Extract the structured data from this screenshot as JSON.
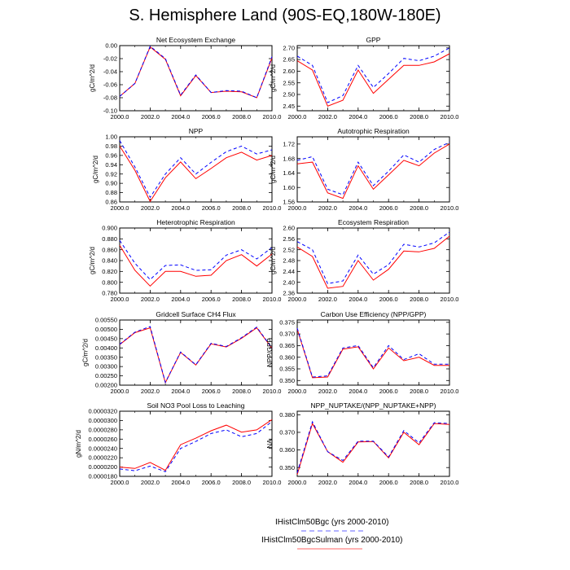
{
  "title": "S. Hemisphere Land (90S-EQ,180W-180E)",
  "legend": {
    "items": [
      {
        "label": "IHistClm50Bgc (yrs 2000-2010)",
        "color": "#0000ff",
        "dash": true
      },
      {
        "label": "IHistClm50BgcSulman (yrs 2000-2010)",
        "color": "#ff0000",
        "dash": false
      }
    ]
  },
  "chart_data": [
    {
      "type": "line",
      "title": "Net Ecosystem Exchange",
      "ylabel": "gC/m^2/d",
      "x": [
        2000,
        2001,
        2002,
        2003,
        2004,
        2005,
        2006,
        2007,
        2008,
        2009,
        2010
      ],
      "xlim": [
        2000,
        2010
      ],
      "xticks": [
        "2000.0",
        "2002.0",
        "2004.0",
        "2006.0",
        "2008.0",
        "2010.0"
      ],
      "ylim": [
        -0.1,
        0.0
      ],
      "yticks": [
        "-0.10",
        "-0.08",
        "-0.06",
        "-0.04",
        "-0.02",
        "0.00"
      ],
      "series": [
        {
          "name": "IHistClm50Bgc (yrs 2000-2010)",
          "color": "#0000ff",
          "dash": true,
          "values": [
            -0.078,
            -0.058,
            -0.001,
            -0.02,
            -0.076,
            -0.045,
            -0.072,
            -0.069,
            -0.07,
            -0.08,
            -0.017
          ]
        },
        {
          "name": "IHistClm50BgcSulman (yrs 2000-2010)",
          "color": "#ff0000",
          "dash": false,
          "values": [
            -0.078,
            -0.058,
            -0.002,
            -0.021,
            -0.077,
            -0.046,
            -0.072,
            -0.07,
            -0.071,
            -0.08,
            -0.019
          ]
        }
      ]
    },
    {
      "type": "line",
      "title": "GPP",
      "ylabel": "gC/m^2/d",
      "x": [
        2000,
        2001,
        2002,
        2003,
        2004,
        2005,
        2006,
        2007,
        2008,
        2009,
        2010
      ],
      "xlim": [
        2000,
        2010
      ],
      "xticks": [
        "2000.0",
        "2002.0",
        "2004.0",
        "2006.0",
        "2008.0",
        "2010.0"
      ],
      "ylim": [
        2.43,
        2.71
      ],
      "yticks": [
        "2.45",
        "2.50",
        "2.55",
        "2.60",
        "2.65",
        "2.70"
      ],
      "series": [
        {
          "name": "IHistClm50Bgc (yrs 2000-2010)",
          "color": "#0000ff",
          "dash": true,
          "values": [
            2.665,
            2.625,
            2.465,
            2.495,
            2.625,
            2.53,
            2.59,
            2.655,
            2.645,
            2.665,
            2.7
          ]
        },
        {
          "name": "IHistClm50BgcSulman (yrs 2000-2010)",
          "color": "#ff0000",
          "dash": false,
          "values": [
            2.645,
            2.605,
            2.45,
            2.475,
            2.605,
            2.505,
            2.565,
            2.625,
            2.625,
            2.64,
            2.675
          ]
        }
      ]
    },
    {
      "type": "line",
      "title": "NPP",
      "ylabel": "gC/m^2/d",
      "x": [
        2000,
        2001,
        2002,
        2003,
        2004,
        2005,
        2006,
        2007,
        2008,
        2009,
        2010
      ],
      "xlim": [
        2000,
        2010
      ],
      "xticks": [
        "2000.0",
        "2002.0",
        "2004.0",
        "2006.0",
        "2008.0",
        "2010.0"
      ],
      "ylim": [
        0.86,
        1.0
      ],
      "yticks": [
        "0.86",
        "0.88",
        "0.90",
        "0.92",
        "0.94",
        "0.96",
        "0.98",
        "1.00"
      ],
      "series": [
        {
          "name": "IHistClm50Bgc (yrs 2000-2010)",
          "color": "#0000ff",
          "dash": true,
          "values": [
            0.992,
            0.935,
            0.87,
            0.92,
            0.955,
            0.92,
            0.945,
            0.968,
            0.98,
            0.963,
            0.972
          ]
        },
        {
          "name": "IHistClm50BgcSulman (yrs 2000-2010)",
          "color": "#ff0000",
          "dash": false,
          "values": [
            0.98,
            0.928,
            0.861,
            0.912,
            0.946,
            0.91,
            0.932,
            0.955,
            0.967,
            0.95,
            0.96
          ]
        }
      ]
    },
    {
      "type": "line",
      "title": "Autotrophic Respiration",
      "ylabel": "gC/m^2/d",
      "x": [
        2000,
        2001,
        2002,
        2003,
        2004,
        2005,
        2006,
        2007,
        2008,
        2009,
        2010
      ],
      "xlim": [
        2000,
        2010
      ],
      "xticks": [
        "2000.0",
        "2002.0",
        "2004.0",
        "2006.0",
        "2008.0",
        "2010.0"
      ],
      "ylim": [
        1.56,
        1.74
      ],
      "yticks": [
        "1.56",
        "1.60",
        "1.64",
        "1.68",
        "1.72"
      ],
      "series": [
        {
          "name": "IHistClm50Bgc (yrs 2000-2010)",
          "color": "#0000ff",
          "dash": true,
          "values": [
            1.675,
            1.685,
            1.595,
            1.58,
            1.67,
            1.605,
            1.645,
            1.69,
            1.67,
            1.705,
            1.725
          ]
        },
        {
          "name": "IHistClm50BgcSulman (yrs 2000-2010)",
          "color": "#ff0000",
          "dash": false,
          "values": [
            1.665,
            1.67,
            1.585,
            1.57,
            1.66,
            1.595,
            1.635,
            1.675,
            1.66,
            1.695,
            1.72
          ]
        }
      ]
    },
    {
      "type": "line",
      "title": "Heterotrophic Respiration",
      "ylabel": "gC/m^2/d",
      "x": [
        2000,
        2001,
        2002,
        2003,
        2004,
        2005,
        2006,
        2007,
        2008,
        2009,
        2010
      ],
      "xlim": [
        2000,
        2010
      ],
      "xticks": [
        "2000.0",
        "2002.0",
        "2004.0",
        "2006.0",
        "2008.0",
        "2010.0"
      ],
      "ylim": [
        0.78,
        0.9
      ],
      "yticks": [
        "0.780",
        "0.800",
        "0.820",
        "0.840",
        "0.860",
        "0.880",
        "0.900"
      ],
      "series": [
        {
          "name": "IHistClm50Bgc (yrs 2000-2010)",
          "color": "#0000ff",
          "dash": true,
          "values": [
            0.877,
            0.835,
            0.805,
            0.831,
            0.832,
            0.822,
            0.823,
            0.85,
            0.86,
            0.843,
            0.864
          ]
        },
        {
          "name": "IHistClm50BgcSulman (yrs 2000-2010)",
          "color": "#ff0000",
          "dash": false,
          "values": [
            0.868,
            0.822,
            0.793,
            0.82,
            0.82,
            0.811,
            0.813,
            0.84,
            0.851,
            0.83,
            0.852
          ]
        }
      ]
    },
    {
      "type": "line",
      "title": "Ecosystem Respiration",
      "ylabel": "gC/m^2/d",
      "x": [
        2000,
        2001,
        2002,
        2003,
        2004,
        2005,
        2006,
        2007,
        2008,
        2009,
        2010
      ],
      "xlim": [
        2000,
        2010
      ],
      "xticks": [
        "2000.0",
        "2002.0",
        "2004.0",
        "2006.0",
        "2008.0",
        "2010.0"
      ],
      "ylim": [
        2.36,
        2.6
      ],
      "yticks": [
        "2.36",
        "2.40",
        "2.44",
        "2.48",
        "2.52",
        "2.56",
        "2.60"
      ],
      "series": [
        {
          "name": "IHistClm50Bgc (yrs 2000-2010)",
          "color": "#0000ff",
          "dash": true,
          "values": [
            2.55,
            2.52,
            2.395,
            2.405,
            2.5,
            2.43,
            2.465,
            2.54,
            2.53,
            2.545,
            2.585
          ]
        },
        {
          "name": "IHistClm50BgcSulman (yrs 2000-2010)",
          "color": "#ff0000",
          "dash": false,
          "values": [
            2.53,
            2.495,
            2.378,
            2.385,
            2.48,
            2.408,
            2.448,
            2.515,
            2.512,
            2.525,
            2.57
          ]
        }
      ]
    },
    {
      "type": "line",
      "title": "Gridcell Surface CH4 Flux",
      "ylabel": "gC/m^2/d",
      "x": [
        2000,
        2001,
        2002,
        2003,
        2004,
        2005,
        2006,
        2007,
        2008,
        2009,
        2010
      ],
      "xlim": [
        2000,
        2010
      ],
      "xticks": [
        "2000.0",
        "2002.0",
        "2004.0",
        "2006.0",
        "2008.0",
        "2010.0"
      ],
      "ylim": [
        0.002,
        0.0055
      ],
      "yticks": [
        "0.00200",
        "0.00250",
        "0.00300",
        "0.00350",
        "0.00400",
        "0.00450",
        "0.00500",
        "0.00550"
      ],
      "series": [
        {
          "name": "IHistClm50Bgc (yrs 2000-2010)",
          "color": "#0000ff",
          "dash": true,
          "values": [
            0.0042,
            0.00485,
            0.00515,
            0.00215,
            0.00378,
            0.0031,
            0.00425,
            0.00408,
            0.00455,
            0.00512,
            0.004
          ]
        },
        {
          "name": "IHistClm50BgcSulman (yrs 2000-2010)",
          "color": "#ff0000",
          "dash": false,
          "values": [
            0.00418,
            0.00482,
            0.00508,
            0.00213,
            0.00376,
            0.00308,
            0.00422,
            0.00405,
            0.00452,
            0.00508,
            0.00398
          ]
        }
      ]
    },
    {
      "type": "line",
      "title": "Carbon Use Efficiency (NPP/GPP)",
      "ylabel": "NPP/GPP",
      "x": [
        2000,
        2001,
        2002,
        2003,
        2004,
        2005,
        2006,
        2007,
        2008,
        2009,
        2010
      ],
      "xlim": [
        2000,
        2010
      ],
      "xticks": [
        "2000.0",
        "2002.0",
        "2004.0",
        "2006.0",
        "2008.0",
        "2010.0"
      ],
      "ylim": [
        0.348,
        0.376
      ],
      "yticks": [
        "0.350",
        "0.355",
        "0.360",
        "0.365",
        "0.370",
        "0.375"
      ],
      "series": [
        {
          "name": "IHistClm50Bgc (yrs 2000-2010)",
          "color": "#0000ff",
          "dash": true,
          "values": [
            0.3725,
            0.3515,
            0.352,
            0.364,
            0.365,
            0.3555,
            0.365,
            0.359,
            0.3615,
            0.357,
            0.357
          ]
        },
        {
          "name": "IHistClm50BgcSulman (yrs 2000-2010)",
          "color": "#ff0000",
          "dash": false,
          "values": [
            0.372,
            0.3512,
            0.3515,
            0.3635,
            0.3645,
            0.355,
            0.364,
            0.3585,
            0.36,
            0.3565,
            0.3565
          ]
        }
      ]
    },
    {
      "type": "line",
      "title": "Soil NO3 Pool Loss to Leaching",
      "ylabel": "gN/m^2/d",
      "x": [
        2000,
        2001,
        2002,
        2003,
        2004,
        2005,
        2006,
        2007,
        2008,
        2009,
        2010
      ],
      "xlim": [
        2000,
        2010
      ],
      "xticks": [
        "2000.0",
        "2002.0",
        "2004.0",
        "2006.0",
        "2008.0",
        "2010.0"
      ],
      "ylim": [
        1.8e-05,
        3.2e-05
      ],
      "yticks": [
        "0.0000180",
        "0.0000200",
        "0.0000220",
        "0.0000240",
        "0.0000260",
        "0.0000280",
        "0.0000300",
        "0.0000320"
      ],
      "series": [
        {
          "name": "IHistClm50Bgc (yrs 2000-2010)",
          "color": "#0000ff",
          "dash": true,
          "values": [
            1.96e-05,
            1.92e-05,
            2.02e-05,
            1.9e-05,
            2.4e-05,
            2.55e-05,
            2.72e-05,
            2.8e-05,
            2.65e-05,
            2.72e-05,
            2.98e-05
          ]
        },
        {
          "name": "IHistClm50BgcSulman (yrs 2000-2010)",
          "color": "#ff0000",
          "dash": false,
          "values": [
            2e-05,
            1.97e-05,
            2.1e-05,
            1.93e-05,
            2.48e-05,
            2.62e-05,
            2.78e-05,
            2.9e-05,
            2.75e-05,
            2.8e-05,
            3.02e-05
          ]
        }
      ]
    },
    {
      "type": "line",
      "title": "NPP_NUPTAKE/(NPP_NUPTAKE+NPP)",
      "ylabel": "NA",
      "x": [
        2000,
        2001,
        2002,
        2003,
        2004,
        2005,
        2006,
        2007,
        2008,
        2009,
        2010
      ],
      "xlim": [
        2000,
        2010
      ],
      "xticks": [
        "2000.0",
        "2002.0",
        "2004.0",
        "2006.0",
        "2008.0",
        "2010.0"
      ],
      "ylim": [
        0.345,
        0.382
      ],
      "yticks": [
        "0.350",
        "0.360",
        "0.370",
        "0.380"
      ],
      "series": [
        {
          "name": "IHistClm50Bgc (yrs 2000-2010)",
          "color": "#0000ff",
          "dash": true,
          "values": [
            0.347,
            0.376,
            0.359,
            0.354,
            0.365,
            0.365,
            0.356,
            0.371,
            0.364,
            0.3755,
            0.375
          ]
        },
        {
          "name": "IHistClm50BgcSulman (yrs 2000-2010)",
          "color": "#ff0000",
          "dash": false,
          "values": [
            0.346,
            0.375,
            0.359,
            0.353,
            0.3645,
            0.3648,
            0.3555,
            0.37,
            0.363,
            0.375,
            0.3745
          ]
        }
      ]
    }
  ]
}
